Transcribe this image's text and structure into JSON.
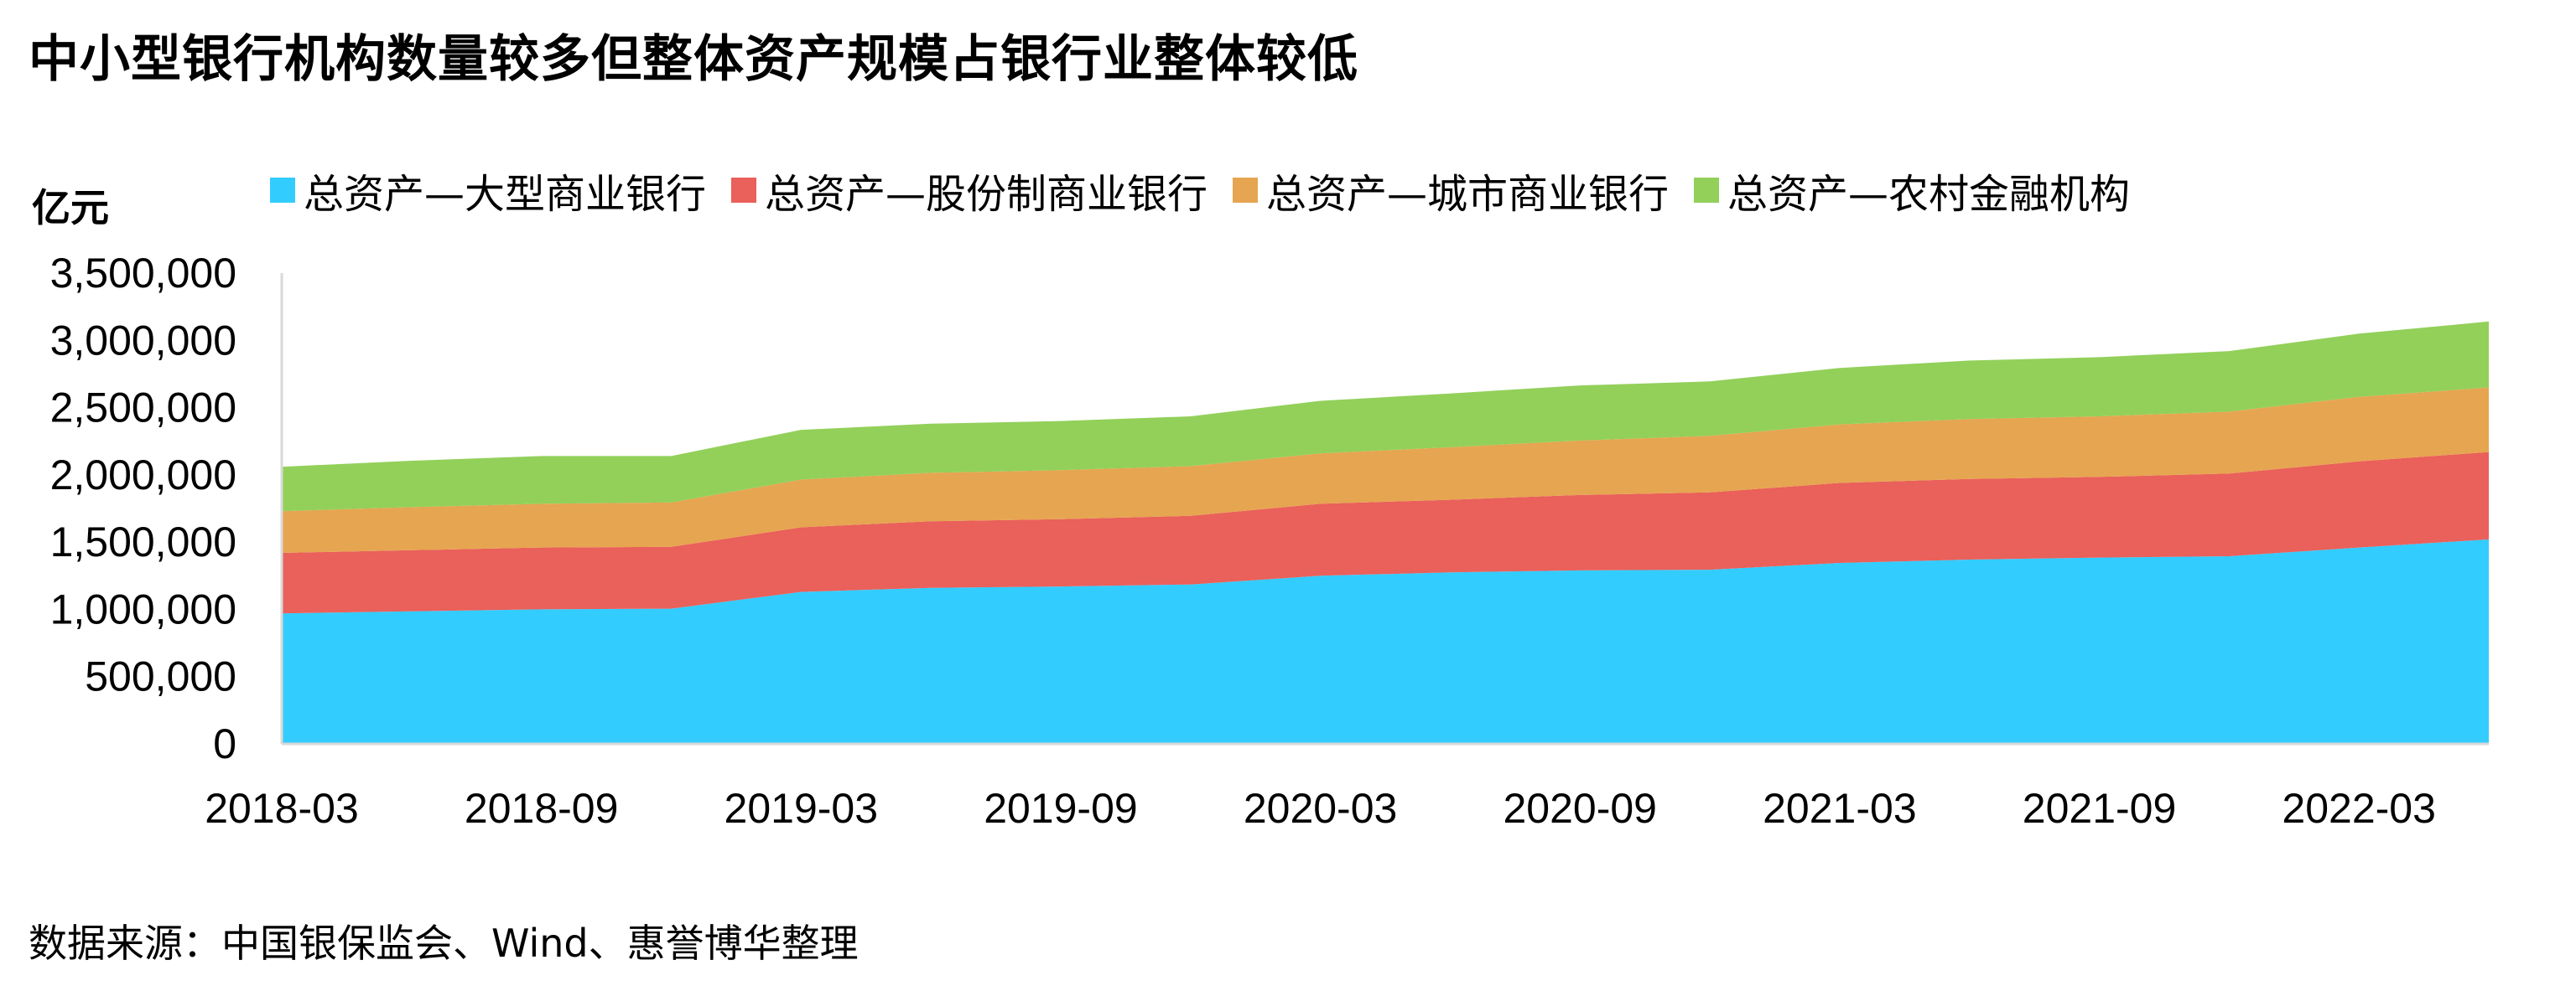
{
  "title": "中小型银行机构数量较多但整体资产规模占银行业整体较低",
  "unit_label": "亿元",
  "source": "数据来源：中国银保监会、Wind、惠誉博华整理",
  "chart_data": {
    "type": "area",
    "stacked": true,
    "x": [
      "2018-03",
      "2018-06",
      "2018-09",
      "2018-12",
      "2019-03",
      "2019-06",
      "2019-09",
      "2019-12",
      "2020-03",
      "2020-06",
      "2020-09",
      "2020-12",
      "2021-03",
      "2021-06",
      "2021-09",
      "2021-12",
      "2022-03",
      "2022-06"
    ],
    "x_tick_labels": [
      "2018-03",
      "2018-09",
      "2019-03",
      "2019-09",
      "2020-03",
      "2020-09",
      "2021-03",
      "2021-09",
      "2022-03"
    ],
    "ylim": [
      0,
      3500000
    ],
    "y_ticks": [
      0,
      500000,
      1000000,
      1500000,
      2000000,
      2500000,
      3000000,
      3500000
    ],
    "y_tick_labels": [
      "0",
      "500,000",
      "1,000,000",
      "1,500,000",
      "2,000,000",
      "2,500,000",
      "3,000,000",
      "3,500,000"
    ],
    "ylabel": "亿元",
    "legend_position": "top",
    "grid": false,
    "series": [
      {
        "name": "总资产—大型商业银行",
        "color": "#33CCFF",
        "values": [
          970000,
          985000,
          1000000,
          1005000,
          1130000,
          1160000,
          1170000,
          1185000,
          1250000,
          1275000,
          1290000,
          1295000,
          1345000,
          1370000,
          1385000,
          1395000,
          1460000,
          1520000
        ]
      },
      {
        "name": "总资产—股份制商业银行",
        "color": "#EA605A",
        "values": [
          450000,
          455000,
          460000,
          460000,
          480000,
          495000,
          500000,
          510000,
          535000,
          540000,
          560000,
          575000,
          595000,
          600000,
          600000,
          615000,
          640000,
          650000
        ]
      },
      {
        "name": "总资产—城市商业银行",
        "color": "#E6A550",
        "values": [
          310000,
          320000,
          325000,
          330000,
          355000,
          360000,
          365000,
          370000,
          375000,
          390000,
          405000,
          420000,
          435000,
          445000,
          450000,
          460000,
          480000,
          480000
        ]
      },
      {
        "name": "总资产—农村金融机构",
        "color": "#92D05A",
        "values": [
          330000,
          345000,
          355000,
          345000,
          370000,
          365000,
          365000,
          370000,
          390000,
          400000,
          410000,
          405000,
          420000,
          435000,
          440000,
          450000,
          470000,
          490000
        ]
      }
    ]
  }
}
